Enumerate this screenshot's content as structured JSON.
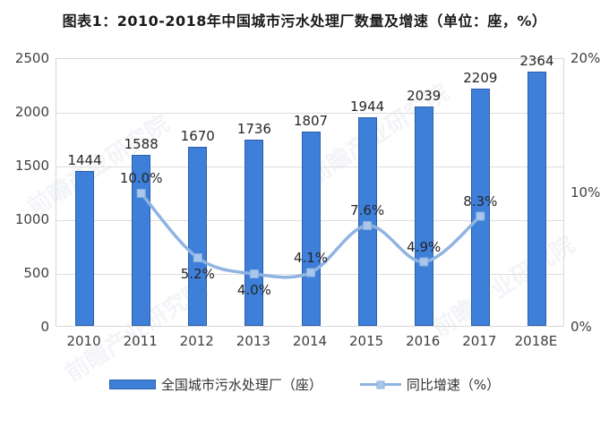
{
  "title": "图表1：2010-2018年中国城市污水处理厂数量及增速（单位：座，%）",
  "watermark_text": "前瞻产业研究院",
  "chart_data": {
    "type": "combo-bar-line",
    "title": "图表1：2010-2018年中国城市污水处理厂数量及增速（单位：座，%）",
    "categories": [
      "2010",
      "2011",
      "2012",
      "2013",
      "2014",
      "2015",
      "2016",
      "2017",
      "2018E"
    ],
    "series": [
      {
        "name": "全国城市污水处理厂（座）",
        "type": "bar",
        "axis": "left",
        "color": "#3e7fd9",
        "values": [
          1444,
          1588,
          1670,
          1736,
          1807,
          1944,
          2039,
          2209,
          2364
        ],
        "value_labels": [
          "1444",
          "1588",
          "1670",
          "1736",
          "1807",
          "1944",
          "2039",
          "2209",
          "2364"
        ]
      },
      {
        "name": "同比增速（%）",
        "type": "line",
        "axis": "right",
        "color": "#8fb4e2",
        "values": [
          null,
          10.0,
          5.2,
          4.0,
          4.1,
          7.6,
          4.9,
          8.3,
          null
        ],
        "value_labels": [
          null,
          "10.0%",
          "5.2%",
          "4.0%",
          "4.1%",
          "7.6%",
          "4.9%",
          "8.3%",
          null
        ]
      }
    ],
    "left_axis": {
      "min": 0,
      "max": 2500,
      "ticks": [
        "2500",
        "2000",
        "1500",
        "1000",
        "500",
        "0"
      ]
    },
    "right_axis": {
      "min": 0,
      "max": 20,
      "ticks": [
        "20%",
        "10%",
        "0%"
      ]
    },
    "grid": "horizontal",
    "legend_position": "bottom"
  }
}
